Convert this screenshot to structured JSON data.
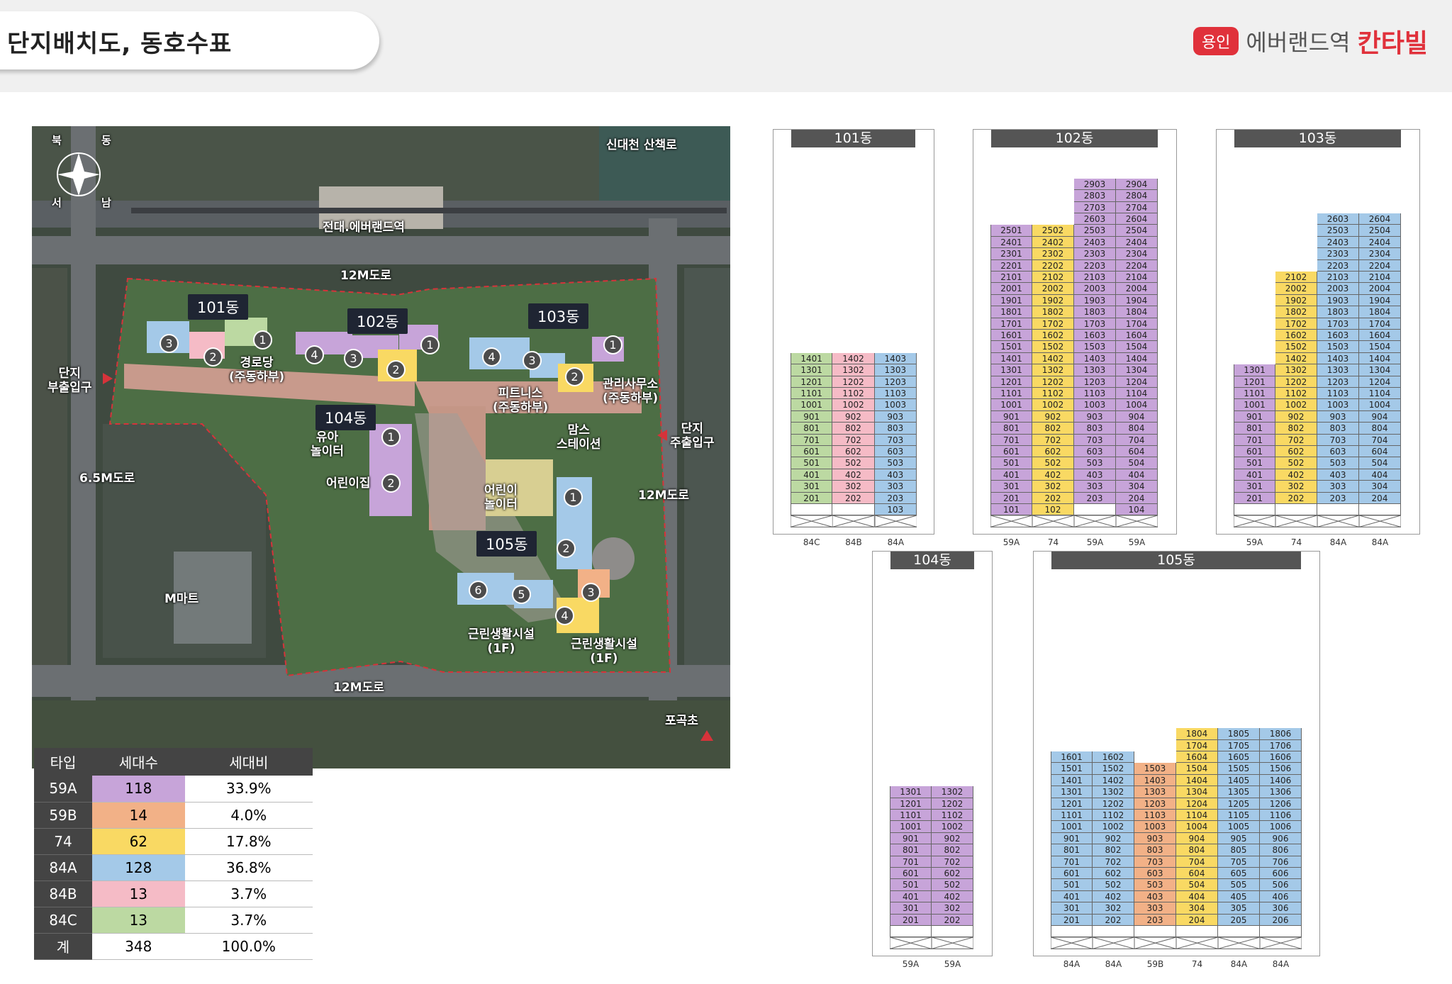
{
  "page_title": "단지배치도, 동호수표",
  "brand": {
    "badge": "용인",
    "name": "에버랜드역",
    "name_bold": "칸타빌"
  },
  "colors": {
    "59A": "#c7a4d9",
    "59B": "#f2b187",
    "74": "#f9d963",
    "84A": "#a4c9e8",
    "84B": "#f5bbc6",
    "84C": "#bcd9a2",
    "accent": "#e0313b"
  },
  "map": {
    "compass": [
      "북",
      "동",
      "남",
      "서"
    ],
    "road_labels": [
      "신대천 산책로",
      "12M도로",
      "6.5M도로",
      "12M도로",
      "12M도로"
    ],
    "station": "전대.에버랜드역",
    "buildings": [
      "101동",
      "102동",
      "103동",
      "104동",
      "105동"
    ],
    "facilities": [
      "경로당\n(주동하부)",
      "피트니스\n(주동하부)",
      "관리사무소\n(주동하부)",
      "유아\n놀이터",
      "어린이집",
      "맘스\n스테이션",
      "어린이\n놀이터",
      "근린생활시설\n(1F)",
      "근린생활시설\n(1F)",
      "M마트",
      "포곡초"
    ],
    "entrances": [
      "단지\n부출입구",
      "단지\n주출입구"
    ]
  },
  "legend": {
    "headers": [
      "타입",
      "세대수",
      "세대비"
    ],
    "rows": [
      {
        "type": "59A",
        "count": "118",
        "ratio": "33.9%"
      },
      {
        "type": "59B",
        "count": "14",
        "ratio": "4.0%"
      },
      {
        "type": "74",
        "count": "62",
        "ratio": "17.8%"
      },
      {
        "type": "84A",
        "count": "128",
        "ratio": "36.8%"
      },
      {
        "type": "84B",
        "count": "13",
        "ratio": "3.7%"
      },
      {
        "type": "84C",
        "count": "13",
        "ratio": "3.7%"
      },
      {
        "type": "계",
        "count": "348",
        "ratio": "100.0%"
      }
    ]
  },
  "unit_tables": [
    {
      "name": "101동",
      "columns": [
        {
          "type": "84C",
          "top": 14,
          "bottom": 2,
          "suffix": "01"
        },
        {
          "type": "84B",
          "top": 14,
          "bottom": 2,
          "suffix": "02"
        },
        {
          "type": "84A",
          "top": 14,
          "bottom": 1,
          "suffix": "03"
        }
      ]
    },
    {
      "name": "102동",
      "columns": [
        {
          "type": "59A",
          "top": 25,
          "bottom": 1,
          "suffix": "01"
        },
        {
          "type": "74",
          "top": 25,
          "bottom": 1,
          "suffix": "02"
        },
        {
          "type": "59A",
          "top": 29,
          "bottom": 2,
          "suffix": "03"
        },
        {
          "type": "59A",
          "top": 29,
          "bottom": 1,
          "suffix": "04"
        }
      ]
    },
    {
      "name": "103동",
      "columns": [
        {
          "type": "59A",
          "top": 13,
          "bottom": 2,
          "suffix": "01"
        },
        {
          "type": "74",
          "top": 21,
          "bottom": 2,
          "suffix": "02"
        },
        {
          "type": "84A",
          "top": 26,
          "bottom": 2,
          "suffix": "03"
        },
        {
          "type": "84A",
          "top": 26,
          "bottom": 2,
          "suffix": "04"
        }
      ]
    },
    {
      "name": "104동",
      "columns": [
        {
          "type": "59A",
          "top": 13,
          "bottom": 2,
          "suffix": "01"
        },
        {
          "type": "59A",
          "top": 13,
          "bottom": 2,
          "suffix": "02"
        }
      ]
    },
    {
      "name": "105동",
      "columns": [
        {
          "type": "84A",
          "top": 16,
          "bottom": 2,
          "suffix": "01"
        },
        {
          "type": "84A",
          "top": 16,
          "bottom": 2,
          "suffix": "02"
        },
        {
          "type": "59B",
          "top": 15,
          "bottom": 2,
          "suffix": "03"
        },
        {
          "type": "74",
          "top": 18,
          "bottom": 2,
          "suffix": "04"
        },
        {
          "type": "84A",
          "top": 18,
          "bottom": 2,
          "suffix": "05"
        },
        {
          "type": "84A",
          "top": 18,
          "bottom": 2,
          "suffix": "06"
        }
      ]
    }
  ]
}
